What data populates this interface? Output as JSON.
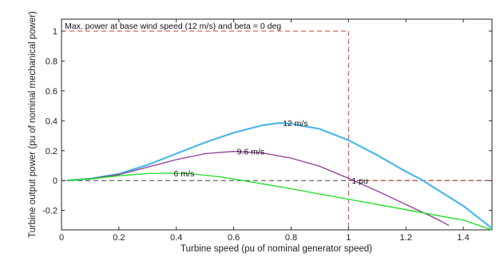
{
  "chart_data": {
    "type": "line",
    "title": "Max. power at base wind speed (12 m/s) and beta = 0 deg",
    "xlabel": "Turbine speed (pu of nominal generator speed)",
    "ylabel": "Turbine output power (pu of nominal mechanical power)",
    "xlim": [
      0,
      1.5
    ],
    "ylim": [
      -0.33,
      1.08
    ],
    "xticks": [
      0,
      0.2,
      0.4,
      0.6,
      0.8,
      1,
      1.2,
      1.4
    ],
    "xtick_labels": [
      "0",
      "0.2",
      "0.4",
      "0.6",
      "0.8",
      "1",
      "1.2",
      "1.4"
    ],
    "yticks": [
      -0.2,
      0,
      0.2,
      0.4,
      0.6,
      0.8,
      1
    ],
    "ytick_labels": [
      "-0.2",
      "0",
      "0.2",
      "0.4",
      "0.6",
      "0.8",
      "1"
    ],
    "grid": false,
    "series": [
      {
        "name": "12 m/s",
        "color": "#4db8e8",
        "x": [
          0.02,
          0.1,
          0.2,
          0.3,
          0.4,
          0.5,
          0.6,
          0.7,
          0.76,
          0.8,
          0.9,
          1.0,
          1.1,
          1.2,
          1.26,
          1.3,
          1.4,
          1.5
        ],
        "y": [
          0.0,
          0.012,
          0.045,
          0.105,
          0.18,
          0.255,
          0.32,
          0.37,
          0.385,
          0.38,
          0.345,
          0.27,
          0.17,
          0.06,
          0.0,
          -0.05,
          -0.17,
          -0.32
        ]
      },
      {
        "name": "9.6 m/s",
        "color": "#8e3b96",
        "x": [
          0.02,
          0.1,
          0.2,
          0.3,
          0.4,
          0.5,
          0.6,
          0.7,
          0.8,
          0.9,
          1.0,
          1.1,
          1.2,
          1.3,
          1.35
        ],
        "y": [
          0.0,
          0.012,
          0.04,
          0.09,
          0.14,
          0.18,
          0.195,
          0.185,
          0.15,
          0.095,
          0.015,
          -0.07,
          -0.16,
          -0.25,
          -0.3
        ]
      },
      {
        "name": "6 m/s",
        "color": "#22dd22",
        "x": [
          0.02,
          0.1,
          0.2,
          0.3,
          0.38,
          0.45,
          0.55,
          0.6,
          0.7,
          0.8,
          0.9,
          1.0,
          1.1,
          1.2,
          1.3,
          1.4,
          1.5
        ],
        "y": [
          0.0,
          0.01,
          0.032,
          0.047,
          0.05,
          0.046,
          0.025,
          0.01,
          -0.022,
          -0.055,
          -0.09,
          -0.125,
          -0.16,
          -0.195,
          -0.23,
          -0.265,
          -0.33
        ]
      }
    ],
    "reference_lines": {
      "color": "#d23c3c",
      "max_power_y": 1,
      "base_speed_x": 1,
      "zero_y": 0
    },
    "annotations": [
      {
        "text": "12 m/s",
        "x": 0.76,
        "y": 0.385
      },
      {
        "text": "9.6 m/s",
        "x": 0.6,
        "y": 0.195
      },
      {
        "text": "6 m/s",
        "x": 0.38,
        "y": 0.05
      },
      {
        "text": "1 pu",
        "x": 1.0,
        "y": 0.0
      }
    ]
  }
}
